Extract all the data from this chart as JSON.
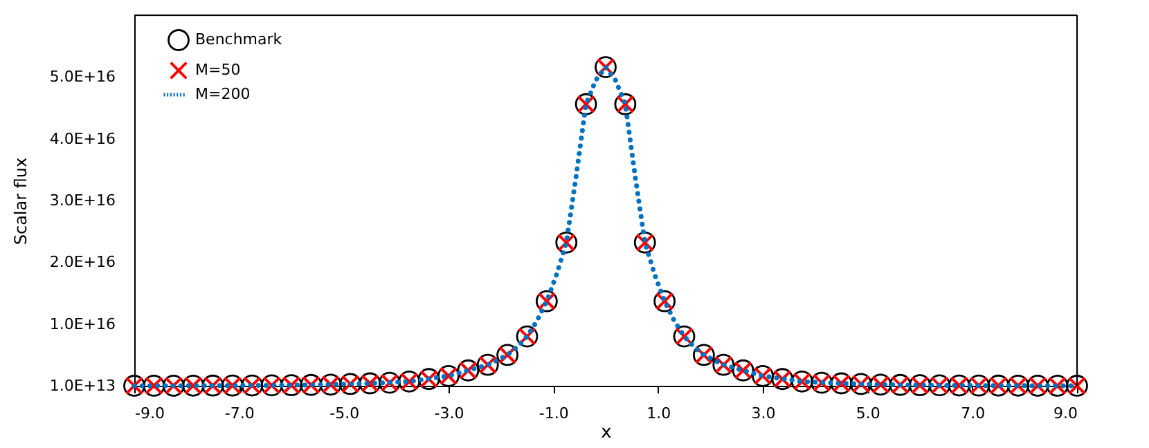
{
  "chart_data": {
    "type": "scatter",
    "xlabel": "x",
    "ylabel": "Scalar flux",
    "xlim": [
      -9,
      9
    ],
    "xticks": [
      {
        "value": -9,
        "label": "-9.0"
      },
      {
        "value": -7,
        "label": "-7.0"
      },
      {
        "value": -5,
        "label": "-5.0"
      },
      {
        "value": -3,
        "label": "-3.0"
      },
      {
        "value": -1,
        "label": "-1.0"
      },
      {
        "value": 1,
        "label": "1.0"
      },
      {
        "value": 3,
        "label": "3.0"
      },
      {
        "value": 5,
        "label": "5.0"
      },
      {
        "value": 7,
        "label": "7.0"
      },
      {
        "value": 9,
        "label": "9.0"
      }
    ],
    "ylim": [
      10000000000000.0,
      6.001e+16
    ],
    "yticks": [
      {
        "value": 10000000000000.0,
        "label": "1.0E+13"
      },
      {
        "value": 1.001e+16,
        "label": "1.0E+16"
      },
      {
        "value": 2.001e+16,
        "label": "2.0E+16"
      },
      {
        "value": 3.001e+16,
        "label": "3.0E+16"
      },
      {
        "value": 4.001e+16,
        "label": "4.0E+16"
      },
      {
        "value": 5.001e+16,
        "label": "5.0E+16"
      }
    ],
    "grid": false,
    "legend": "top left",
    "x": [
      -9,
      -8.625,
      -8.25,
      -7.875,
      -7.5,
      -7.125,
      -6.75,
      -6.375,
      -6,
      -5.625,
      -5.25,
      -4.875,
      -4.5,
      -4.125,
      -3.75,
      -3.375,
      -3,
      -2.625,
      -2.25,
      -1.875,
      -1.5,
      -1.125,
      -0.75,
      -0.375,
      0,
      0.375,
      0.75,
      1.125,
      1.5,
      1.875,
      2.25,
      2.625,
      3,
      3.375,
      3.75,
      4.125,
      4.5,
      4.875,
      5.25,
      5.625,
      6,
      6.375,
      6.75,
      7.125,
      7.5,
      7.875,
      8.25,
      8.625,
      9
    ],
    "series": [
      {
        "name": "Benchmark",
        "marker": "circle",
        "color": "#000000",
        "values": [
          12000000000000.0,
          15000000000000.0,
          20000000000000.0,
          30000000000000.0,
          40000000000000.0,
          50000000000000.0,
          60000000000000.0,
          80000000000000.0,
          100000000000000.0,
          150000000000000.0,
          200000000000000.0,
          300000000000000.0,
          400000000000000.0,
          500000000000000.0,
          700000000000000.0,
          1100000000000000.0,
          1600000000000000.0,
          2500000000000000.0,
          3400000000000000.0,
          5000000000000000.0,
          8000000000000000.0,
          1.37e+16,
          2.32e+16,
          4.56e+16,
          5.16e+16,
          4.56e+16,
          2.32e+16,
          1.37e+16,
          8000000000000000.0,
          5000000000000000.0,
          3400000000000000.0,
          2500000000000000.0,
          1600000000000000.0,
          1100000000000000.0,
          700000000000000.0,
          500000000000000.0,
          400000000000000.0,
          300000000000000.0,
          200000000000000.0,
          150000000000000.0,
          100000000000000.0,
          80000000000000.0,
          60000000000000.0,
          50000000000000.0,
          40000000000000.0,
          30000000000000.0,
          20000000000000.0,
          15000000000000.0,
          12000000000000.0
        ]
      },
      {
        "name": "M=50",
        "marker": "cross",
        "color": "#ff0000",
        "values": [
          12000000000000.0,
          15000000000000.0,
          20000000000000.0,
          30000000000000.0,
          40000000000000.0,
          50000000000000.0,
          60000000000000.0,
          80000000000000.0,
          100000000000000.0,
          150000000000000.0,
          200000000000000.0,
          300000000000000.0,
          400000000000000.0,
          500000000000000.0,
          700000000000000.0,
          1100000000000000.0,
          1600000000000000.0,
          2500000000000000.0,
          3400000000000000.0,
          5000000000000000.0,
          8000000000000000.0,
          1.37e+16,
          2.32e+16,
          4.56e+16,
          5.16e+16,
          4.56e+16,
          2.32e+16,
          1.37e+16,
          8000000000000000.0,
          5000000000000000.0,
          3400000000000000.0,
          2500000000000000.0,
          1600000000000000.0,
          1100000000000000.0,
          700000000000000.0,
          500000000000000.0,
          400000000000000.0,
          300000000000000.0,
          200000000000000.0,
          150000000000000.0,
          100000000000000.0,
          80000000000000.0,
          60000000000000.0,
          50000000000000.0,
          40000000000000.0,
          30000000000000.0,
          20000000000000.0,
          15000000000000.0,
          12000000000000.0
        ]
      },
      {
        "name": "M=200",
        "type": "line",
        "line_style": "dotted",
        "marker": "none",
        "color": "#0070c0",
        "x": [
          -9,
          -8.25,
          -7.5,
          -6.75,
          -6,
          -5.25,
          -4.5,
          -3.75,
          -3,
          -2.625,
          -2.25,
          -1.875,
          -1.6875,
          -1.5,
          -1.3125,
          -1.125,
          -0.9375,
          -0.75,
          -0.5625,
          -0.375,
          -0.1875,
          0,
          0.1875,
          0.375,
          0.5625,
          0.75,
          0.9375,
          1.125,
          1.3125,
          1.5,
          1.6875,
          1.875,
          2.25,
          2.625,
          3,
          3.75,
          4.5,
          5.25,
          6,
          6.75,
          7.5,
          8.25,
          9
        ],
        "values": [
          12000000000000.0,
          20000000000000.0,
          40000000000000.0,
          60000000000000.0,
          100000000000000.0,
          200000000000000.0,
          400000000000000.0,
          700000000000000.0,
          1600000000000000.0,
          2500000000000000.0,
          3400000000000000.0,
          5000000000000000.0,
          6300000000000000.0,
          8000000000000000.0,
          1.05e+16,
          1.37e+16,
          1.8e+16,
          2.32e+16,
          3.4e+16,
          4.56e+16,
          4.95e+16,
          5.16e+16,
          4.95e+16,
          4.56e+16,
          3.4e+16,
          2.32e+16,
          1.8e+16,
          1.37e+16,
          1.05e+16,
          8000000000000000.0,
          6300000000000000.0,
          5000000000000000.0,
          3400000000000000.0,
          2500000000000000.0,
          1600000000000000.0,
          700000000000000.0,
          400000000000000.0,
          200000000000000.0,
          100000000000000.0,
          60000000000000.0,
          40000000000000.0,
          20000000000000.0,
          12000000000000.0
        ]
      }
    ]
  }
}
